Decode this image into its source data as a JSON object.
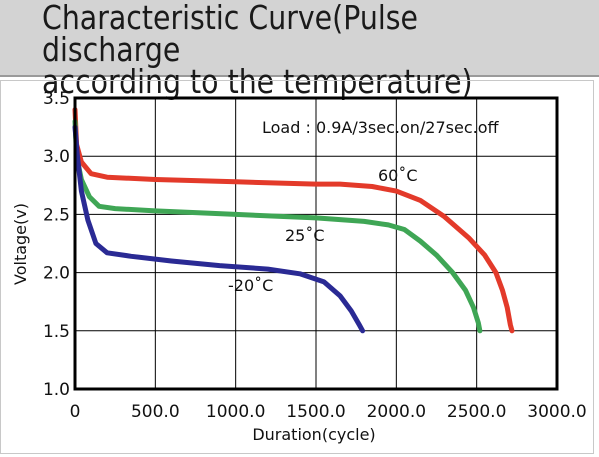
{
  "header": {
    "title": "Characteristic Curve(Pulse discharge\naccording to the temperature)"
  },
  "colors": {
    "header_bg": "#d3d3d3",
    "series_60": "#e33a2a",
    "series_25": "#3fa655",
    "series_m20": "#2a2a94"
  },
  "chart_data": {
    "type": "line",
    "title": "Characteristic Curve(Pulse discharge according to the temperature)",
    "xlabel": "Duration(cycle)",
    "ylabel": "Voltage(v)",
    "xlim": [
      0,
      3000
    ],
    "ylim": [
      1.0,
      3.5
    ],
    "x_ticks": [
      "0",
      "500.0",
      "1000.0",
      "1500.0",
      "2000.0",
      "2500.0",
      "3000.0"
    ],
    "y_ticks": [
      "1.0",
      "1.5",
      "2.0",
      "2.5",
      "3.0",
      "3.5"
    ],
    "grid": true,
    "annotation": "Load : 0.9A/3sec.on/27sec.off",
    "series": [
      {
        "name": "60˚C",
        "color": "#e33a2a",
        "points": [
          [
            0,
            3.4
          ],
          [
            10,
            3.1
          ],
          [
            40,
            2.95
          ],
          [
            100,
            2.85
          ],
          [
            200,
            2.82
          ],
          [
            500,
            2.8
          ],
          [
            1000,
            2.78
          ],
          [
            1500,
            2.76
          ],
          [
            1650,
            2.76
          ],
          [
            1850,
            2.74
          ],
          [
            2000,
            2.7
          ],
          [
            2150,
            2.62
          ],
          [
            2300,
            2.48
          ],
          [
            2450,
            2.3
          ],
          [
            2550,
            2.15
          ],
          [
            2620,
            2.0
          ],
          [
            2660,
            1.85
          ],
          [
            2690,
            1.7
          ],
          [
            2710,
            1.55
          ],
          [
            2720,
            1.5
          ]
        ]
      },
      {
        "name": "25˚C",
        "color": "#3fa655",
        "points": [
          [
            0,
            3.3
          ],
          [
            10,
            3.0
          ],
          [
            40,
            2.8
          ],
          [
            90,
            2.65
          ],
          [
            150,
            2.57
          ],
          [
            250,
            2.55
          ],
          [
            500,
            2.53
          ],
          [
            1000,
            2.5
          ],
          [
            1500,
            2.47
          ],
          [
            1800,
            2.44
          ],
          [
            1950,
            2.41
          ],
          [
            2050,
            2.37
          ],
          [
            2150,
            2.27
          ],
          [
            2250,
            2.15
          ],
          [
            2350,
            2.0
          ],
          [
            2430,
            1.85
          ],
          [
            2480,
            1.7
          ],
          [
            2510,
            1.57
          ],
          [
            2520,
            1.5
          ]
        ]
      },
      {
        "name": "-20˚C",
        "color": "#2a2a94",
        "points": [
          [
            0,
            3.25
          ],
          [
            15,
            3.0
          ],
          [
            40,
            2.7
          ],
          [
            80,
            2.45
          ],
          [
            130,
            2.25
          ],
          [
            200,
            2.17
          ],
          [
            350,
            2.14
          ],
          [
            600,
            2.1
          ],
          [
            900,
            2.06
          ],
          [
            1200,
            2.03
          ],
          [
            1400,
            1.99
          ],
          [
            1550,
            1.92
          ],
          [
            1650,
            1.8
          ],
          [
            1720,
            1.67
          ],
          [
            1770,
            1.55
          ],
          [
            1790,
            1.5
          ]
        ]
      }
    ]
  }
}
